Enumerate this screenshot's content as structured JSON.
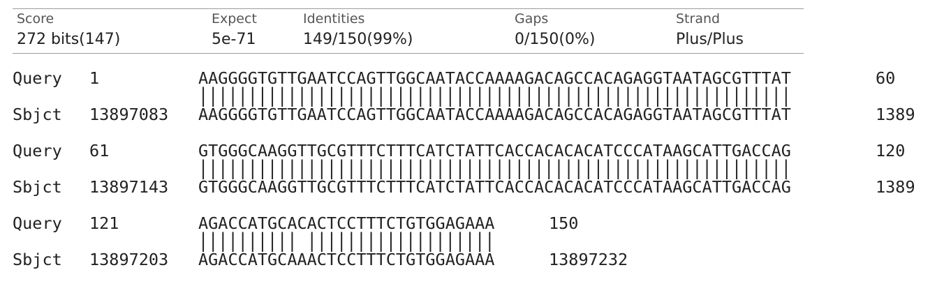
{
  "summary": {
    "score": {
      "label": "Score",
      "value": "272 bits(147)"
    },
    "expect": {
      "label": "Expect",
      "value": "5e-71"
    },
    "identities": {
      "label": "Identities",
      "value": "149/150(99%)"
    },
    "gaps": {
      "label": "Gaps",
      "value": "0/150(0%)"
    },
    "strand": {
      "label": "Strand",
      "value": "Plus/Plus"
    }
  },
  "blocks": [
    {
      "query_label": "Query",
      "query_start": "1",
      "query_seq": "AAGGGGTGTTGAATCCAGTTGGCAATACCAAAAGACAGCCACAGAGGTAATAGCGTTTAT",
      "query_end": "60",
      "match": "||||||||||||||||||||||||||||||||||||||||||||||||||||||||||||",
      "sbjct_label": "Sbjct",
      "sbjct_start": "13897083",
      "sbjct_seq": "AAGGGGTGTTGAATCCAGTTGGCAATACCAAAAGACAGCCACAGAGGTAATAGCGTTTAT",
      "sbjct_end": "1389"
    },
    {
      "query_label": "Query",
      "query_start": "61",
      "query_seq": "GTGGGCAAGGTTGCGTTTCTTTCATCTATTCACCACACACATCCCATAAGCATTGACCAG",
      "query_end": "120",
      "match": "||||||||||||||||||||||||||||||||||||||||||||||||||||||||||||",
      "sbjct_label": "Sbjct",
      "sbjct_start": "13897143",
      "sbjct_seq": "GTGGGCAAGGTTGCGTTTCTTTCATCTATTCACCACACACATCCCATAAGCATTGACCAG",
      "sbjct_end": "1389"
    },
    {
      "query_label": "Query",
      "query_start": "121",
      "query_seq": "AGACCATGCACACTCCTTTCTGTGGAGAAA",
      "query_end": "150",
      "match": "|||||||||| |||||||||||||||||||",
      "sbjct_label": "Sbjct",
      "sbjct_start": "13897203",
      "sbjct_seq": "AGACCATGCAAACTCCTTTCTGTGGAGAAA",
      "sbjct_end": "13897232"
    }
  ]
}
